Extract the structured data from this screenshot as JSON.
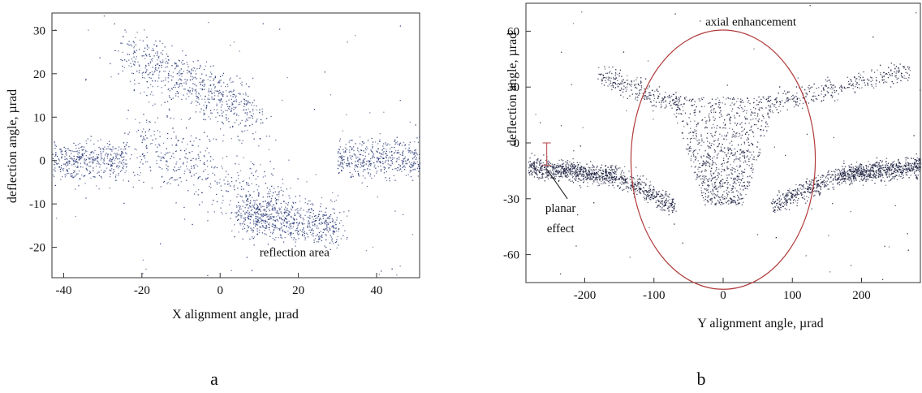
{
  "chart_data": [
    {
      "type": "scatter",
      "panel_label": "a",
      "xlabel": "X alignment angle,  µrad",
      "ylabel": "deflection angle,  µrad",
      "xlim": [
        -43,
        51
      ],
      "ylim": [
        -27,
        34
      ],
      "xticks": [
        -40,
        -20,
        0,
        20,
        40
      ],
      "yticks": [
        -20,
        -10,
        0,
        10,
        20,
        30
      ],
      "grid": false,
      "point_color": "#2b3a78",
      "annotations": [
        {
          "text": "reflection area",
          "x": 19,
          "y": -22
        }
      ],
      "clusters": [
        {
          "name": "left-channel",
          "x_range": [
            -43,
            -24
          ],
          "y_center": 0,
          "y_spread": 2.2,
          "count": 420
        },
        {
          "name": "right-channel",
          "x_range": [
            30,
            51
          ],
          "y_center": 0.5,
          "y_spread": 2.2,
          "count": 460
        },
        {
          "name": "upper-band",
          "x_from": -24,
          "y_from": 25,
          "x_to": 10,
          "y_to": 10,
          "spread": 3.2,
          "count": 650
        },
        {
          "name": "middle-diagonal",
          "x_from": -22,
          "y_from": 5,
          "x_to": 15,
          "y_to": -10,
          "spread": 4.5,
          "count": 450
        },
        {
          "name": "lower-band",
          "x_from": 5,
          "y_from": -12,
          "x_to": 30,
          "y_to": -15,
          "spread": 2.5,
          "count": 700
        },
        {
          "name": "background",
          "x_range": [
            -43,
            51
          ],
          "y_range": [
            -27,
            34
          ],
          "count": 90
        }
      ]
    },
    {
      "type": "scatter",
      "panel_label": "b",
      "xlabel": "Y alignment angle, µrad",
      "ylabel": "deflection angle, µrad",
      "xlim": [
        -285,
        285
      ],
      "ylim": [
        -75,
        75
      ],
      "xticks": [
        -200,
        -100,
        0,
        100,
        200
      ],
      "yticks": [
        -60,
        -30,
        0,
        30,
        60
      ],
      "grid": false,
      "point_color": "#1a1d3e",
      "circle": {
        "cx": 0,
        "cy": -9,
        "r_x": 185,
        "r_y": 60,
        "color": "#b03a3a"
      },
      "planar_marker": {
        "x": -255,
        "y_from": -12,
        "y_to": 0,
        "color": "#c06060"
      },
      "annotations": [
        {
          "text": "axial enhancement",
          "x": 40,
          "y": 63
        },
        {
          "text": "planar",
          "x": -235,
          "y": -37
        },
        {
          "text": "effect",
          "x": -235,
          "y": -48
        }
      ],
      "clusters": [
        {
          "name": "planar-left",
          "x_from": -280,
          "y_from": -13,
          "x_to": -160,
          "y_to": -17,
          "spread": 2.6,
          "count": 700
        },
        {
          "name": "planar-left-dip",
          "x_from": -160,
          "y_from": -17,
          "x_to": -70,
          "y_to": -33,
          "spread": 2.6,
          "count": 360
        },
        {
          "name": "planar-right-dip",
          "x_from": 70,
          "y_from": -33,
          "x_to": 170,
          "y_to": -17,
          "spread": 2.6,
          "count": 360
        },
        {
          "name": "planar-right",
          "x_from": 170,
          "y_from": -17,
          "x_to": 285,
          "y_to": -12,
          "spread": 2.6,
          "count": 700
        },
        {
          "name": "central-funnel",
          "x_range": [
            -80,
            80
          ],
          "y_range": [
            -33,
            25
          ],
          "count": 900
        },
        {
          "name": "upper-arm-left",
          "x_from": -180,
          "y_from": 37,
          "x_to": -60,
          "y_to": 20,
          "spread": 3,
          "count": 260
        },
        {
          "name": "upper-arm-right",
          "x_from": 60,
          "y_from": 20,
          "x_to": 270,
          "y_to": 40,
          "spread": 3,
          "count": 320
        },
        {
          "name": "background",
          "x_range": [
            -285,
            285
          ],
          "y_range": [
            -75,
            75
          ],
          "count": 70
        }
      ]
    }
  ]
}
